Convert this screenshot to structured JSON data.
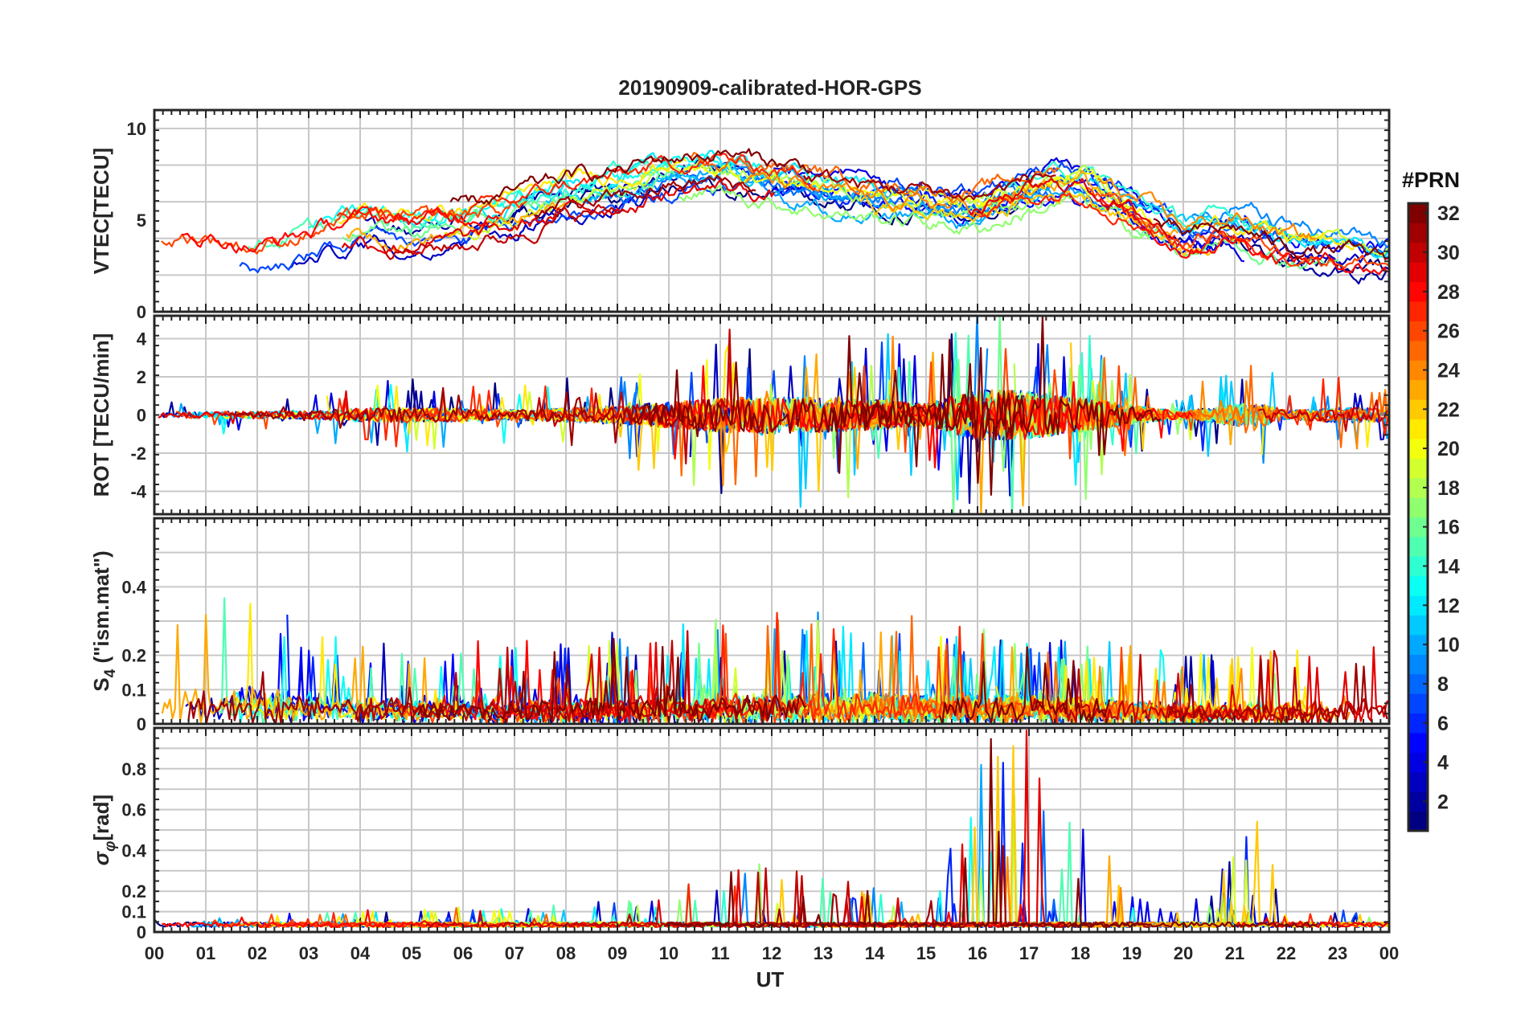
{
  "chart_data": {
    "type": "line",
    "title": "20190909-calibrated-HOR-GPS",
    "xlabel": "UT",
    "x_range_hours": [
      0,
      24
    ],
    "x_tick_labels": [
      "00",
      "01",
      "02",
      "03",
      "04",
      "05",
      "06",
      "07",
      "08",
      "09",
      "10",
      "11",
      "12",
      "13",
      "14",
      "15",
      "16",
      "17",
      "18",
      "19",
      "20",
      "21",
      "22",
      "23",
      "00"
    ],
    "series_description": "GPS PRN 1-32, one line per satellite, colored by PRN",
    "panels": [
      {
        "id": "vtec",
        "ylabel": "VTEC[TECU]",
        "ylim": [
          0,
          11
        ],
        "y_ticks": [
          0,
          5,
          10
        ],
        "grid_y": [
          0,
          2,
          4,
          6,
          8,
          10
        ],
        "envelope_points": [
          [
            0,
            3.5
          ],
          [
            1,
            3.6
          ],
          [
            2,
            3.0
          ],
          [
            3,
            3.8
          ],
          [
            4,
            4.6
          ],
          [
            5,
            4.4
          ],
          [
            6,
            4.7
          ],
          [
            7,
            5.3
          ],
          [
            8,
            6.2
          ],
          [
            9,
            6.6
          ],
          [
            10,
            7.3
          ],
          [
            11,
            7.6
          ],
          [
            12,
            7.1
          ],
          [
            13,
            6.6
          ],
          [
            14,
            6.2
          ],
          [
            15,
            6.0
          ],
          [
            16,
            5.6
          ],
          [
            17,
            6.6
          ],
          [
            18,
            7.1
          ],
          [
            19,
            5.6
          ],
          [
            20,
            4.1
          ],
          [
            21,
            4.6
          ],
          [
            22,
            3.6
          ],
          [
            23,
            3.3
          ],
          [
            24,
            2.9
          ]
        ],
        "activity": [
          [
            0,
            0.25
          ],
          [
            24,
            0.25
          ]
        ]
      },
      {
        "id": "rot",
        "ylabel": "ROT [TECU/min]",
        "ylim": [
          -5.2,
          5.2
        ],
        "y_ticks": [
          -4,
          -2,
          0,
          2,
          4
        ],
        "grid_y": [
          -4,
          -2,
          0,
          2,
          4
        ],
        "envelope_points": [
          [
            0,
            0
          ],
          [
            24,
            0
          ]
        ],
        "activity": [
          [
            0,
            0.35
          ],
          [
            3,
            0.45
          ],
          [
            4,
            0.8
          ],
          [
            5,
            0.9
          ],
          [
            7,
            0.6
          ],
          [
            8,
            0.8
          ],
          [
            9,
            1.1
          ],
          [
            10,
            1.5
          ],
          [
            11,
            2.0
          ],
          [
            12,
            2.2
          ],
          [
            13,
            2.0
          ],
          [
            14,
            1.8
          ],
          [
            15,
            1.3
          ],
          [
            16,
            3.0
          ],
          [
            17,
            2.8
          ],
          [
            18,
            2.0
          ],
          [
            19,
            1.1
          ],
          [
            20,
            0.4
          ],
          [
            21,
            1.3
          ],
          [
            21.5,
            1.4
          ],
          [
            22,
            0.5
          ],
          [
            23,
            0.9
          ],
          [
            24,
            0.8
          ]
        ]
      },
      {
        "id": "s4",
        "ylabel_main": "S",
        "ylabel_sub": "4",
        "ylabel_tail": " (\"ism.mat\")",
        "ylim": [
          0,
          0.6
        ],
        "y_ticks": [
          0,
          0.1,
          0.2,
          0.4
        ],
        "grid_y": [
          0.1,
          0.2,
          0.3,
          0.4,
          0.5
        ],
        "envelope_points": [
          [
            0,
            0.05
          ],
          [
            2,
            0.07
          ],
          [
            5,
            0.05
          ],
          [
            9,
            0.05
          ],
          [
            12,
            0.06
          ],
          [
            14,
            0.06
          ],
          [
            17,
            0.06
          ],
          [
            20,
            0.04
          ],
          [
            24,
            0.05
          ]
        ],
        "activity": [
          [
            0,
            0.14
          ],
          [
            2,
            0.2
          ],
          [
            3,
            0.1
          ],
          [
            6,
            0.08
          ],
          [
            9,
            0.1
          ],
          [
            12,
            0.12
          ],
          [
            14,
            0.12
          ],
          [
            17,
            0.1
          ],
          [
            21,
            0.08
          ],
          [
            24,
            0.1
          ]
        ]
      },
      {
        "id": "sigma",
        "ylabel_main": "σ",
        "ylabel_sub": "φ",
        "ylabel_tail": "[rad]",
        "ylim": [
          0,
          1.0
        ],
        "y_ticks": [
          0,
          0.1,
          0.2,
          0.4,
          0.6,
          0.8
        ],
        "grid_y": [
          0.1,
          0.2,
          0.3,
          0.4,
          0.5,
          0.6,
          0.7,
          0.8,
          0.9
        ],
        "envelope_points": [
          [
            0,
            0.04
          ],
          [
            24,
            0.04
          ]
        ],
        "activity": [
          [
            0,
            0.03
          ],
          [
            8,
            0.05
          ],
          [
            10,
            0.1
          ],
          [
            12,
            0.18
          ],
          [
            14,
            0.1
          ],
          [
            15,
            0.03
          ],
          [
            16,
            0.5
          ],
          [
            17,
            0.55
          ],
          [
            18,
            0.45
          ],
          [
            18.8,
            0.1
          ],
          [
            20,
            0.02
          ],
          [
            21,
            0.2
          ],
          [
            21.5,
            0.3
          ],
          [
            22,
            0.03
          ],
          [
            24,
            0.04
          ]
        ]
      }
    ],
    "colorbar": {
      "title": "#PRN",
      "range": [
        1,
        32
      ],
      "tick_values": [
        2,
        4,
        6,
        8,
        10,
        12,
        14,
        16,
        18,
        20,
        22,
        24,
        26,
        28,
        30,
        32
      ],
      "tick_labels": [
        "2",
        "4",
        "6",
        "8",
        "10",
        "12",
        "14",
        "16",
        "18",
        "20",
        "22",
        "24",
        "26",
        "28",
        "30",
        "32"
      ],
      "colormap": "jet"
    }
  }
}
